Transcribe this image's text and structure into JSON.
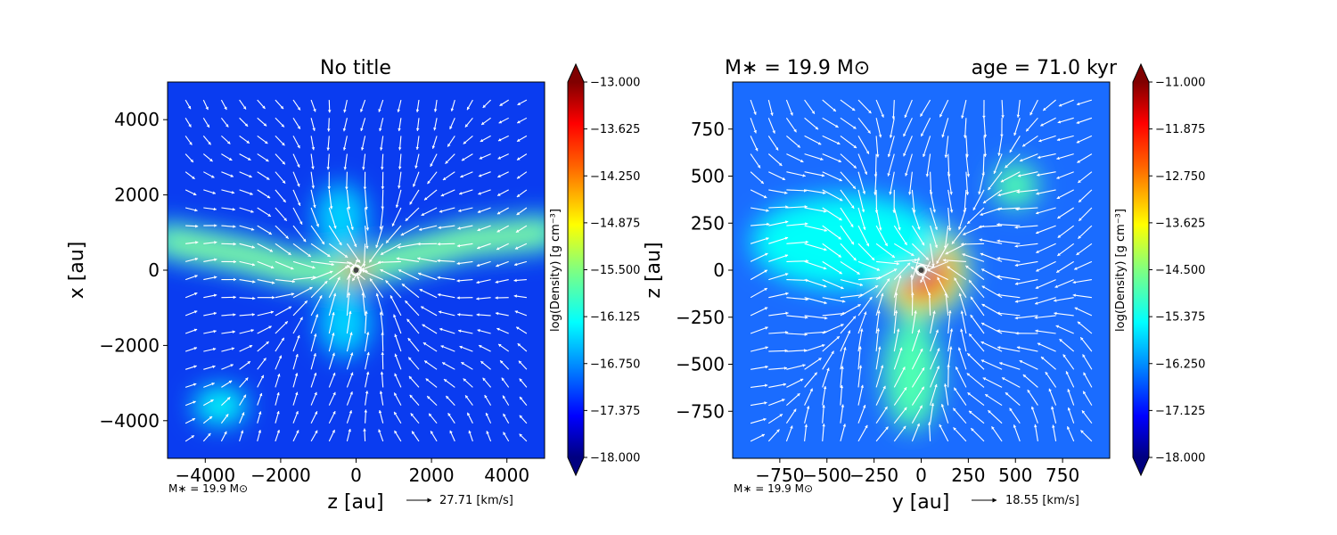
{
  "colors": {
    "colormap_jet": [
      "#000080",
      "#0000ff",
      "#0080ff",
      "#00ffff",
      "#80ff80",
      "#ffff00",
      "#ff8000",
      "#ff0000",
      "#800000"
    ],
    "arrow": "#ffffff",
    "star_marker": "#ffffff"
  },
  "chart_data": [
    {
      "type": "heatmap",
      "title": "No title",
      "xlabel": "z [au]",
      "ylabel": "x [au]",
      "xlim": [
        -5000,
        5000
      ],
      "ylim": [
        -5000,
        5000
      ],
      "xticks": [
        -4000,
        -2000,
        0,
        2000,
        4000
      ],
      "yticks": [
        -4000,
        -2000,
        0,
        2000,
        4000
      ],
      "xticklabels": [
        "−4000",
        "−2000",
        "0",
        "2000",
        "4000"
      ],
      "yticklabels": [
        "−4000",
        "−2000",
        "0",
        "2000",
        "4000"
      ],
      "footnote": "M∗ = 19.9 M⊙",
      "vector_key": "27.71 [km/s]",
      "colorbar": {
        "label": "log(Density) [g cm⁻³]",
        "range": [
          -18.0,
          -13.0
        ],
        "ticks": [
          "−13.000",
          "−13.625",
          "−14.250",
          "−14.875",
          "−15.500",
          "−16.125",
          "−16.750",
          "−17.375",
          "−18.000"
        ],
        "extend": "both"
      },
      "features": [
        {
          "shape": "filament",
          "points": [
            [
              -5000,
              800
            ],
            [
              -3000,
              400
            ],
            [
              -1500,
              0
            ],
            [
              0,
              0
            ],
            [
              1500,
              400
            ],
            [
              3000,
              800
            ],
            [
              5000,
              1000
            ]
          ],
          "level": 0.42
        },
        {
          "shape": "blob",
          "x": -3600,
          "y": -3600,
          "rx": 700,
          "ry": 500,
          "level": 0.38
        },
        {
          "shape": "blob",
          "x": -400,
          "y": 1400,
          "rx": 700,
          "ry": 900,
          "level": 0.33
        },
        {
          "shape": "blob",
          "x": -300,
          "y": -1400,
          "rx": 700,
          "ry": 900,
          "level": 0.33
        },
        {
          "shape": "blob",
          "x": 0,
          "y": 0,
          "rx": 200,
          "ry": 200,
          "level": 0.9
        }
      ],
      "star_position": [
        0,
        0
      ]
    },
    {
      "type": "heatmap",
      "title_left": "M∗ = 19.9 M⊙",
      "title_right": "age = 71.0 kyr",
      "xlabel": "y [au]",
      "ylabel": "z [au]",
      "xlim": [
        -1000,
        1000
      ],
      "ylim": [
        -1000,
        1000
      ],
      "xticks": [
        -750,
        -500,
        -250,
        0,
        250,
        500,
        750
      ],
      "yticks": [
        -750,
        -500,
        -250,
        0,
        250,
        500,
        750
      ],
      "xticklabels": [
        "−750",
        "−500",
        "−250",
        "0",
        "250",
        "500",
        "750"
      ],
      "yticklabels": [
        "−750",
        "−500",
        "−250",
        "0",
        "250",
        "500",
        "750"
      ],
      "footnote": "M∗ = 19.9 M⊙",
      "vector_key": "18.55 [km/s]",
      "colorbar": {
        "label": "log(Density) [g cm⁻³]",
        "range": [
          -18.0,
          -11.0
        ],
        "ticks": [
          "−11.000",
          "−11.875",
          "−12.750",
          "−13.625",
          "−14.500",
          "−15.375",
          "−16.250",
          "−17.125",
          "−18.000"
        ],
        "extend": "both"
      },
      "features": [
        {
          "shape": "blob",
          "x": 0,
          "y": 0,
          "rx": 150,
          "ry": 150,
          "level": 0.95
        },
        {
          "shape": "blob",
          "x": -50,
          "y": -550,
          "rx": 150,
          "ry": 300,
          "level": 0.45
        },
        {
          "shape": "blob",
          "x": 500,
          "y": 450,
          "rx": 120,
          "ry": 120,
          "level": 0.45
        },
        {
          "shape": "blob",
          "x": -400,
          "y": 150,
          "rx": 500,
          "ry": 250,
          "level": 0.38
        }
      ],
      "star_position": [
        0,
        0
      ]
    }
  ]
}
